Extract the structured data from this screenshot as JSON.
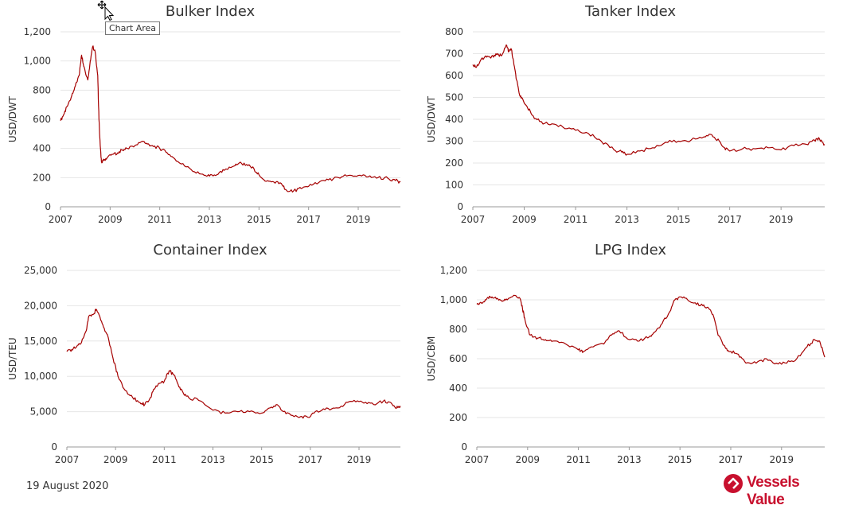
{
  "footer": {
    "date": "19 August 2020"
  },
  "logo": {
    "text": "Vessels Value",
    "color": "#c8102e"
  },
  "tooltip": {
    "text": "Chart Area"
  },
  "line_color": "#a50000",
  "chart_data": [
    {
      "type": "line",
      "title": "Bulker Index",
      "ylabel": "USD/DWT",
      "xlabel": "",
      "xlim": [
        2007,
        2020.7
      ],
      "ylim": [
        0,
        1200
      ],
      "yticks": [
        0,
        200,
        400,
        600,
        800,
        1000,
        1200
      ],
      "yticklabels": [
        "0",
        "200",
        "400",
        "600",
        "800",
        "1,000",
        "1,200"
      ],
      "xticks": [
        "2007",
        "2009",
        "2011",
        "2013",
        "2015",
        "2017",
        "2019"
      ],
      "grid": true,
      "x": [
        2007.0,
        2007.15,
        2007.3,
        2007.45,
        2007.6,
        2007.75,
        2007.85,
        2007.95,
        2008.1,
        2008.2,
        2008.3,
        2008.4,
        2008.5,
        2008.55,
        2008.6,
        2008.65,
        2008.75,
        2008.9,
        2009.1,
        2009.3,
        2009.5,
        2009.7,
        2010.0,
        2010.3,
        2010.5,
        2010.7,
        2011.0,
        2011.3,
        2011.6,
        2012.0,
        2012.4,
        2012.8,
        2013.0,
        2013.3,
        2013.6,
        2014.0,
        2014.2,
        2014.5,
        2014.8,
        2015.0,
        2015.3,
        2015.6,
        2015.9,
        2016.1,
        2016.4,
        2016.7,
        2017.0,
        2017.4,
        2017.8,
        2018.2,
        2018.6,
        2019.0,
        2019.4,
        2019.8,
        2020.2,
        2020.5,
        2020.7
      ],
      "values": [
        590,
        640,
        700,
        760,
        830,
        900,
        1040,
        960,
        870,
        1000,
        1100,
        1060,
        900,
        600,
        420,
        310,
        320,
        340,
        360,
        370,
        390,
        400,
        420,
        450,
        430,
        420,
        400,
        370,
        330,
        280,
        240,
        215,
        210,
        220,
        250,
        280,
        300,
        290,
        260,
        220,
        175,
        170,
        160,
        115,
        110,
        125,
        140,
        165,
        185,
        200,
        215,
        215,
        205,
        200,
        195,
        180,
        170
      ]
    },
    {
      "type": "line",
      "title": "Tanker Index",
      "ylabel": "USD/DWT",
      "xlabel": "",
      "xlim": [
        2007,
        2020.7
      ],
      "ylim": [
        0,
        800
      ],
      "yticks": [
        0,
        100,
        200,
        300,
        400,
        500,
        600,
        700,
        800
      ],
      "yticklabels": [
        "0",
        "100",
        "200",
        "300",
        "400",
        "500",
        "600",
        "700",
        "800"
      ],
      "xticks": [
        "2007",
        "2009",
        "2011",
        "2013",
        "2015",
        "2017",
        "2019"
      ],
      "grid": true,
      "x": [
        2007.0,
        2007.15,
        2007.3,
        2007.5,
        2007.7,
        2007.9,
        2008.1,
        2008.3,
        2008.4,
        2008.5,
        2008.6,
        2008.7,
        2008.8,
        2008.9,
        2009.1,
        2009.3,
        2009.6,
        2010.0,
        2010.5,
        2011.0,
        2011.5,
        2012.0,
        2012.5,
        2012.8,
        2013.0,
        2013.5,
        2014.0,
        2014.5,
        2015.0,
        2015.5,
        2016.0,
        2016.3,
        2016.6,
        2016.8,
        2017.0,
        2017.5,
        2018.0,
        2018.5,
        2019.0,
        2019.5,
        2020.0,
        2020.3,
        2020.5,
        2020.7
      ],
      "values": [
        650,
        640,
        670,
        690,
        680,
        700,
        690,
        740,
        710,
        720,
        650,
        580,
        520,
        500,
        460,
        420,
        390,
        375,
        365,
        350,
        335,
        300,
        260,
        250,
        240,
        255,
        270,
        295,
        300,
        305,
        320,
        330,
        300,
        270,
        255,
        265,
        265,
        270,
        260,
        280,
        285,
        305,
        310,
        285
      ]
    },
    {
      "type": "line",
      "title": "Container Index",
      "ylabel": "USD/TEU",
      "xlabel": "",
      "xlim": [
        2007,
        2020.7
      ],
      "ylim": [
        0,
        25000
      ],
      "yticks": [
        0,
        5000,
        10000,
        15000,
        20000,
        25000
      ],
      "yticklabels": [
        "0",
        "5,000",
        "10,000",
        "15,000",
        "20,000",
        "25,000"
      ],
      "xticks": [
        "2007",
        "2009",
        "2011",
        "2013",
        "2015",
        "2017",
        "2019"
      ],
      "grid": true,
      "x": [
        2007.0,
        2007.2,
        2007.4,
        2007.6,
        2007.8,
        2007.9,
        2008.1,
        2008.2,
        2008.35,
        2008.5,
        2008.7,
        2008.9,
        2009.1,
        2009.4,
        2009.7,
        2010.0,
        2010.2,
        2010.4,
        2010.6,
        2010.8,
        2011.0,
        2011.2,
        2011.4,
        2011.6,
        2011.8,
        2012.0,
        2012.5,
        2013.0,
        2013.5,
        2014.0,
        2014.5,
        2015.0,
        2015.3,
        2015.6,
        2015.9,
        2016.2,
        2016.6,
        2016.9,
        2017.2,
        2017.6,
        2018.0,
        2018.4,
        2018.8,
        2019.2,
        2019.6,
        2020.0,
        2020.3,
        2020.5,
        2020.7
      ],
      "values": [
        13500,
        13800,
        14200,
        14800,
        16500,
        18500,
        18800,
        19500,
        18500,
        17000,
        15500,
        12500,
        10000,
        8000,
        7000,
        6300,
        6000,
        6800,
        8200,
        9000,
        9300,
        10800,
        10200,
        8500,
        7500,
        7000,
        6500,
        5200,
        4800,
        5000,
        5000,
        4800,
        5500,
        6000,
        5000,
        4500,
        4300,
        4200,
        5000,
        5300,
        5500,
        6000,
        6600,
        6200,
        6000,
        6500,
        6300,
        5500,
        5800
      ]
    },
    {
      "type": "line",
      "title": "LPG Index",
      "ylabel": "USD/CBM",
      "xlabel": "",
      "xlim": [
        2007,
        2020.7
      ],
      "ylim": [
        0,
        1200
      ],
      "yticks": [
        0,
        200,
        400,
        600,
        800,
        1000,
        1200
      ],
      "yticklabels": [
        "0",
        "200",
        "400",
        "600",
        "800",
        "1,000",
        "1,200"
      ],
      "xticks": [
        "2007",
        "2009",
        "2011",
        "2013",
        "2015",
        "2017",
        "2019"
      ],
      "grid": true,
      "x": [
        2007.0,
        2007.2,
        2007.4,
        2007.6,
        2007.8,
        2008.0,
        2008.2,
        2008.5,
        2008.7,
        2008.8,
        2008.9,
        2009.1,
        2009.4,
        2009.7,
        2010.0,
        2010.5,
        2011.0,
        2011.2,
        2011.5,
        2012.0,
        2012.3,
        2012.6,
        2013.0,
        2013.4,
        2013.8,
        2014.0,
        2014.3,
        2014.6,
        2014.8,
        2015.0,
        2015.3,
        2015.6,
        2015.9,
        2016.1,
        2016.3,
        2016.5,
        2016.8,
        2017.0,
        2017.3,
        2017.6,
        2018.0,
        2018.4,
        2018.8,
        2019.2,
        2019.6,
        2020.0,
        2020.3,
        2020.5,
        2020.7
      ],
      "values": [
        970,
        975,
        1010,
        1020,
        1010,
        990,
        1000,
        1030,
        1010,
        940,
        860,
        760,
        740,
        730,
        720,
        700,
        660,
        650,
        680,
        700,
        760,
        790,
        730,
        720,
        750,
        780,
        840,
        920,
        1000,
        1020,
        1000,
        980,
        960,
        950,
        900,
        760,
        670,
        650,
        630,
        570,
        570,
        600,
        570,
        570,
        600,
        680,
        730,
        720,
        610
      ]
    }
  ]
}
